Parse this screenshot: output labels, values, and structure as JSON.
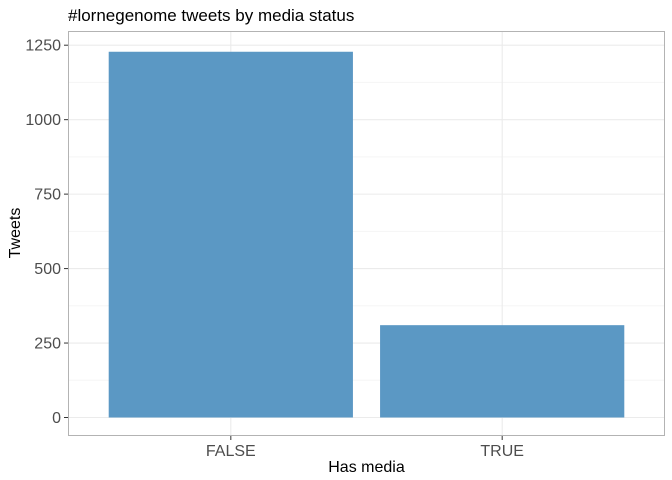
{
  "chart_data": {
    "type": "bar",
    "title": "#lornegenome tweets by media status",
    "xlabel": "Has media",
    "ylabel": "Tweets",
    "categories": [
      "FALSE",
      "TRUE"
    ],
    "values": [
      1228,
      310
    ],
    "ylim": [
      0,
      1290
    ],
    "yticks": [
      0,
      250,
      500,
      750,
      1000,
      1250
    ],
    "grid": true,
    "legend": "none",
    "colors": {
      "bar": "#5b98c4",
      "grid_major": "#ebebeb",
      "grid_minor": "#f5f5f5",
      "panel_border": "#b3b3b3",
      "tick": "#333333"
    }
  }
}
